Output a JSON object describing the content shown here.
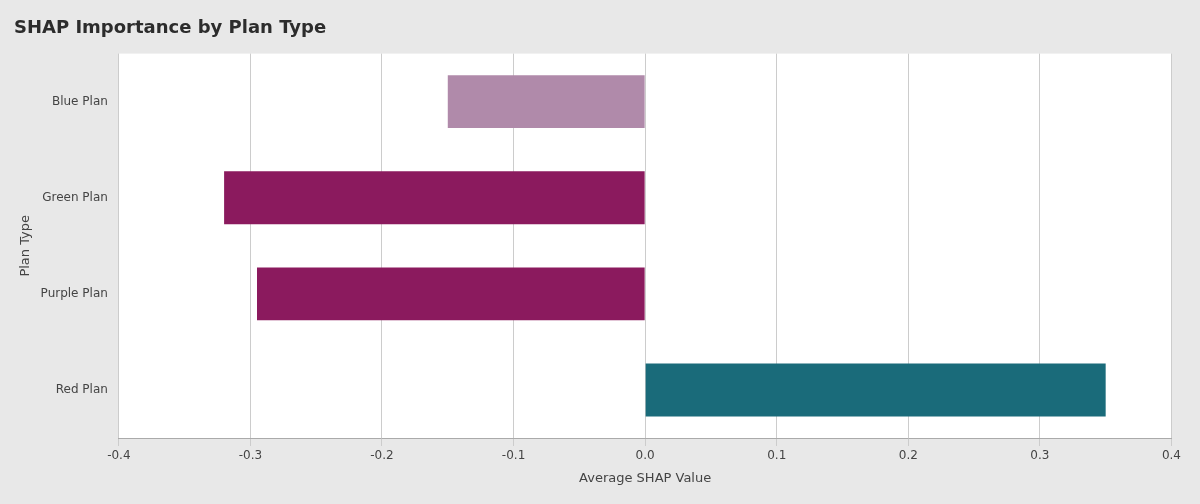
{
  "chart_data": {
    "type": "bar",
    "orientation": "horizontal",
    "title": "SHAP Importance by Plan Type",
    "xlabel": "Average SHAP Value",
    "ylabel": "Plan Type",
    "categories": [
      "Red Plan",
      "Purple Plan",
      "Green Plan",
      "Blue Plan"
    ],
    "values": [
      0.35,
      -0.295,
      -0.32,
      -0.15
    ],
    "colors": [
      "#1a6b7a",
      "#8b1a5e",
      "#8b1a5e",
      "#b08aaa"
    ],
    "xlim": [
      -0.4,
      0.4
    ],
    "xticks": [
      -0.4,
      -0.3,
      -0.2,
      -0.1,
      {
        "value": 0.0,
        "label": "0.0"
      },
      0.1,
      0.2,
      0.3,
      0.4
    ],
    "grid": true
  }
}
